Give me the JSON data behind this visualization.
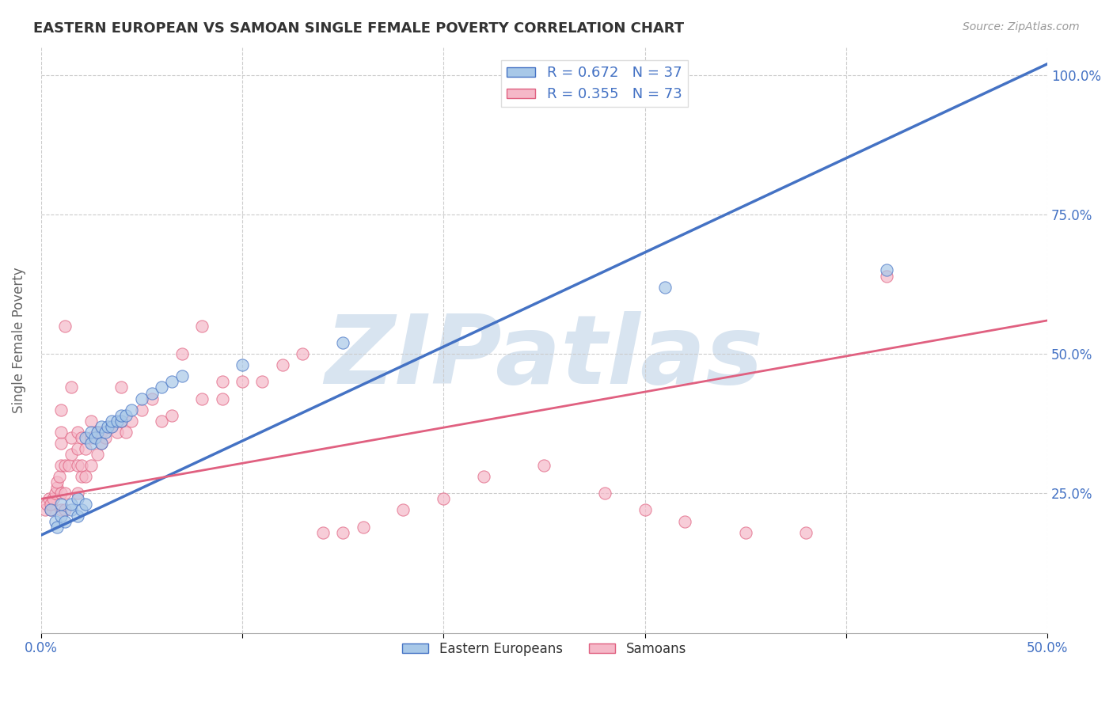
{
  "title": "EASTERN EUROPEAN VS SAMOAN SINGLE FEMALE POVERTY CORRELATION CHART",
  "source": "Source: ZipAtlas.com",
  "xlabel": "",
  "ylabel": "Single Female Poverty",
  "xlim": [
    0.0,
    0.5
  ],
  "ylim": [
    0.0,
    1.05
  ],
  "xtick_labels": [
    "0.0%",
    "",
    "",
    "",
    "",
    "50.0%"
  ],
  "xtick_vals": [
    0.0,
    0.1,
    0.2,
    0.3,
    0.4,
    0.5
  ],
  "ytick_labels": [
    "25.0%",
    "50.0%",
    "75.0%",
    "100.0%"
  ],
  "ytick_vals": [
    0.25,
    0.5,
    0.75,
    1.0
  ],
  "blue_R": 0.672,
  "blue_N": 37,
  "pink_R": 0.355,
  "pink_N": 73,
  "blue_color": "#a8c8e8",
  "pink_color": "#f5b8c8",
  "blue_line_color": "#4472c4",
  "pink_line_color": "#e06080",
  "blue_scatter": [
    [
      0.005,
      0.22
    ],
    [
      0.007,
      0.2
    ],
    [
      0.008,
      0.19
    ],
    [
      0.01,
      0.21
    ],
    [
      0.01,
      0.23
    ],
    [
      0.012,
      0.2
    ],
    [
      0.015,
      0.22
    ],
    [
      0.015,
      0.23
    ],
    [
      0.018,
      0.21
    ],
    [
      0.018,
      0.24
    ],
    [
      0.02,
      0.22
    ],
    [
      0.022,
      0.23
    ],
    [
      0.022,
      0.35
    ],
    [
      0.025,
      0.34
    ],
    [
      0.025,
      0.36
    ],
    [
      0.027,
      0.35
    ],
    [
      0.028,
      0.36
    ],
    [
      0.03,
      0.34
    ],
    [
      0.03,
      0.37
    ],
    [
      0.032,
      0.36
    ],
    [
      0.033,
      0.37
    ],
    [
      0.035,
      0.37
    ],
    [
      0.035,
      0.38
    ],
    [
      0.038,
      0.38
    ],
    [
      0.04,
      0.38
    ],
    [
      0.04,
      0.39
    ],
    [
      0.042,
      0.39
    ],
    [
      0.045,
      0.4
    ],
    [
      0.05,
      0.42
    ],
    [
      0.055,
      0.43
    ],
    [
      0.06,
      0.44
    ],
    [
      0.065,
      0.45
    ],
    [
      0.07,
      0.46
    ],
    [
      0.1,
      0.48
    ],
    [
      0.15,
      0.52
    ],
    [
      0.31,
      0.62
    ],
    [
      0.42,
      0.65
    ]
  ],
  "pink_scatter": [
    [
      0.002,
      0.22
    ],
    [
      0.003,
      0.23
    ],
    [
      0.004,
      0.24
    ],
    [
      0.005,
      0.22
    ],
    [
      0.005,
      0.23
    ],
    [
      0.006,
      0.24
    ],
    [
      0.007,
      0.25
    ],
    [
      0.008,
      0.26
    ],
    [
      0.008,
      0.27
    ],
    [
      0.009,
      0.28
    ],
    [
      0.01,
      0.22
    ],
    [
      0.01,
      0.25
    ],
    [
      0.01,
      0.3
    ],
    [
      0.01,
      0.34
    ],
    [
      0.01,
      0.36
    ],
    [
      0.01,
      0.4
    ],
    [
      0.012,
      0.22
    ],
    [
      0.012,
      0.25
    ],
    [
      0.012,
      0.3
    ],
    [
      0.012,
      0.55
    ],
    [
      0.014,
      0.3
    ],
    [
      0.015,
      0.32
    ],
    [
      0.015,
      0.35
    ],
    [
      0.015,
      0.44
    ],
    [
      0.018,
      0.25
    ],
    [
      0.018,
      0.3
    ],
    [
      0.018,
      0.33
    ],
    [
      0.018,
      0.36
    ],
    [
      0.02,
      0.28
    ],
    [
      0.02,
      0.3
    ],
    [
      0.02,
      0.35
    ],
    [
      0.022,
      0.28
    ],
    [
      0.022,
      0.33
    ],
    [
      0.025,
      0.3
    ],
    [
      0.025,
      0.35
    ],
    [
      0.025,
      0.38
    ],
    [
      0.028,
      0.32
    ],
    [
      0.028,
      0.36
    ],
    [
      0.03,
      0.34
    ],
    [
      0.03,
      0.36
    ],
    [
      0.032,
      0.35
    ],
    [
      0.035,
      0.37
    ],
    [
      0.038,
      0.36
    ],
    [
      0.04,
      0.38
    ],
    [
      0.04,
      0.44
    ],
    [
      0.042,
      0.36
    ],
    [
      0.045,
      0.38
    ],
    [
      0.05,
      0.4
    ],
    [
      0.055,
      0.42
    ],
    [
      0.06,
      0.38
    ],
    [
      0.065,
      0.39
    ],
    [
      0.07,
      0.5
    ],
    [
      0.08,
      0.42
    ],
    [
      0.08,
      0.55
    ],
    [
      0.09,
      0.42
    ],
    [
      0.09,
      0.45
    ],
    [
      0.1,
      0.45
    ],
    [
      0.11,
      0.45
    ],
    [
      0.12,
      0.48
    ],
    [
      0.13,
      0.5
    ],
    [
      0.14,
      0.18
    ],
    [
      0.15,
      0.18
    ],
    [
      0.16,
      0.19
    ],
    [
      0.18,
      0.22
    ],
    [
      0.2,
      0.24
    ],
    [
      0.22,
      0.28
    ],
    [
      0.25,
      0.3
    ],
    [
      0.28,
      0.25
    ],
    [
      0.3,
      0.22
    ],
    [
      0.32,
      0.2
    ],
    [
      0.35,
      0.18
    ],
    [
      0.38,
      0.18
    ],
    [
      0.42,
      0.64
    ]
  ],
  "blue_line_x": [
    0.0,
    0.5
  ],
  "blue_line_y": [
    0.175,
    1.02
  ],
  "pink_line_x": [
    0.0,
    0.5
  ],
  "pink_line_y": [
    0.24,
    0.56
  ],
  "background_color": "#ffffff",
  "grid_color": "#cccccc",
  "title_color": "#333333",
  "axis_label_color": "#666666",
  "tick_color": "#4472c4",
  "watermark": "ZIPatlas",
  "watermark_color": "#d8e4f0"
}
